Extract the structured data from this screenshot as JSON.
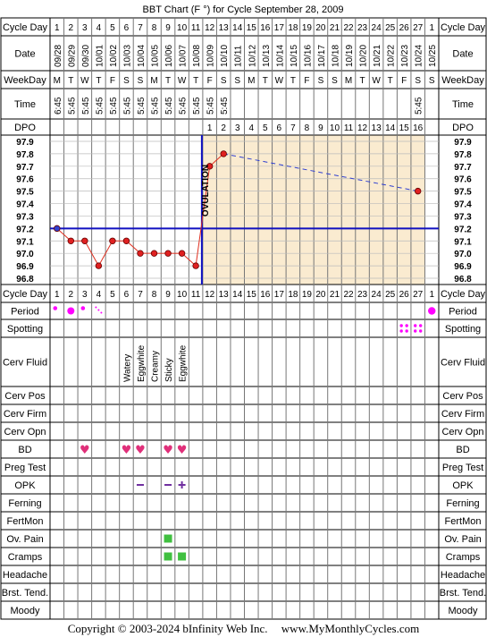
{
  "title": "BBT Chart (F °) for Cycle September 28, 2009",
  "footer": {
    "copyright": "Copyright © 2003-2024 bInfinity Web Inc.",
    "site": "www.MyMonthlyCycles.com"
  },
  "row_labels": {
    "cycle_day": "Cycle Day",
    "date": "Date",
    "weekday": "WeekDay",
    "time": "Time",
    "dpo": "DPO",
    "period": "Period",
    "spotting": "Spotting",
    "cerv_fluid": "Cerv Fluid",
    "cerv_pos": "Cerv Pos",
    "cerv_firm": "Cerv Firm",
    "cerv_opn": "Cerv Opn",
    "bd": "BD",
    "preg_test": "Preg Test",
    "opk": "OPK",
    "ferning": "Ferning",
    "fertmon": "FertMon",
    "ov_pain": "Ov. Pain",
    "cramps": "Cramps",
    "headache": "Headache",
    "brst_tend": "Brst. Tend.",
    "moody": "Moody"
  },
  "cycle_days": [
    "1",
    "2",
    "3",
    "4",
    "5",
    "6",
    "7",
    "8",
    "9",
    "10",
    "11",
    "12",
    "13",
    "14",
    "15",
    "16",
    "17",
    "18",
    "19",
    "20",
    "21",
    "22",
    "23",
    "24",
    "25",
    "26",
    "27",
    "1"
  ],
  "dates": [
    "09/28",
    "09/29",
    "09/30",
    "10/01",
    "10/02",
    "10/03",
    "10/04",
    "10/05",
    "10/06",
    "10/07",
    "10/08",
    "10/09",
    "10/10",
    "10/11",
    "10/12",
    "10/13",
    "10/14",
    "10/15",
    "10/16",
    "10/17",
    "10/18",
    "10/19",
    "10/20",
    "10/21",
    "10/22",
    "10/23",
    "10/24",
    "10/25"
  ],
  "weekdays": [
    "M",
    "T",
    "W",
    "T",
    "F",
    "S",
    "S",
    "M",
    "T",
    "W",
    "T",
    "F",
    "S",
    "S",
    "M",
    "T",
    "W",
    "T",
    "F",
    "S",
    "S",
    "M",
    "T",
    "W",
    "T",
    "F",
    "S",
    "S"
  ],
  "times": [
    "6:45",
    "5:45",
    "5:45",
    "5:45",
    "5:45",
    "5:45",
    "5:45",
    "5:45",
    "5:45",
    "5:45",
    "5:45",
    "5:45",
    "5:45",
    "",
    "",
    "",
    "",
    "",
    "",
    "",
    "",
    "",
    "",
    "",
    "",
    "",
    "5:45",
    ""
  ],
  "dpo": [
    "",
    "",
    "",
    "",
    "",
    "",
    "",
    "",
    "",
    "",
    "",
    "1",
    "2",
    "3",
    "4",
    "5",
    "6",
    "7",
    "8",
    "9",
    "10",
    "11",
    "12",
    "13",
    "14",
    "15",
    "16",
    ""
  ],
  "ovulation_label": "OVULATION",
  "cerv_fluid": [
    "",
    "",
    "",
    "",
    "",
    "Watery",
    "Eggwhite",
    "Creamy",
    "Sticky",
    "Eggwhite",
    "",
    "",
    "",
    "",
    "",
    "",
    "",
    "",
    "",
    "",
    "",
    "",
    "",
    "",
    "",
    "",
    "",
    ""
  ],
  "period": [
    "dot",
    "big",
    "dot",
    "spot",
    "",
    "",
    "",
    "",
    "",
    "",
    "",
    "",
    "",
    "",
    "",
    "",
    "",
    "",
    "",
    "",
    "",
    "",
    "",
    "",
    "",
    "",
    "",
    "big-magenta"
  ],
  "spotting_days": [
    26,
    27
  ],
  "bd_days": [
    3,
    6,
    7,
    9,
    10
  ],
  "opk": {
    "neg_days": [
      7,
      9
    ],
    "pos_days": [
      10
    ]
  },
  "ov_pain_days": [
    9
  ],
  "cramps_days": [
    9,
    10
  ],
  "colors": {
    "temp_line": "#e03020",
    "coverline": "#1010c0",
    "pre_ov_bg": "#ffffff",
    "post_ov_bg": "#faebd0",
    "header_bg": "#ffffff",
    "point_fill": "#e02020",
    "period": "#ff00ff",
    "heart": "#e0307a",
    "opk": "#7030a0",
    "green": "#40c040"
  },
  "chart_data": {
    "type": "line",
    "title": "BBT Chart (F °) for Cycle September 28, 2009",
    "x": [
      "1",
      "2",
      "3",
      "4",
      "5",
      "6",
      "7",
      "8",
      "9",
      "10",
      "11",
      "12",
      "13",
      "27"
    ],
    "y_ticks": [
      "97.9",
      "97.8",
      "97.7",
      "97.6",
      "97.5",
      "97.4",
      "97.3",
      "97.2",
      "97.1",
      "97.0",
      "96.9",
      "96.8"
    ],
    "ylim": [
      96.8,
      97.9
    ],
    "coverline": 97.2,
    "ovulation_day": 11,
    "series": [
      {
        "points": [
          [
            1,
            97.2
          ],
          [
            2,
            97.1
          ],
          [
            3,
            97.1
          ],
          [
            4,
            96.9
          ],
          [
            5,
            97.1
          ],
          [
            6,
            97.1
          ],
          [
            7,
            97.0
          ],
          [
            8,
            97.0
          ],
          [
            9,
            97.0
          ],
          [
            10,
            97.0
          ],
          [
            11,
            96.9
          ],
          [
            12,
            97.7
          ],
          [
            13,
            97.8
          ],
          [
            27,
            97.5
          ]
        ]
      }
    ]
  }
}
